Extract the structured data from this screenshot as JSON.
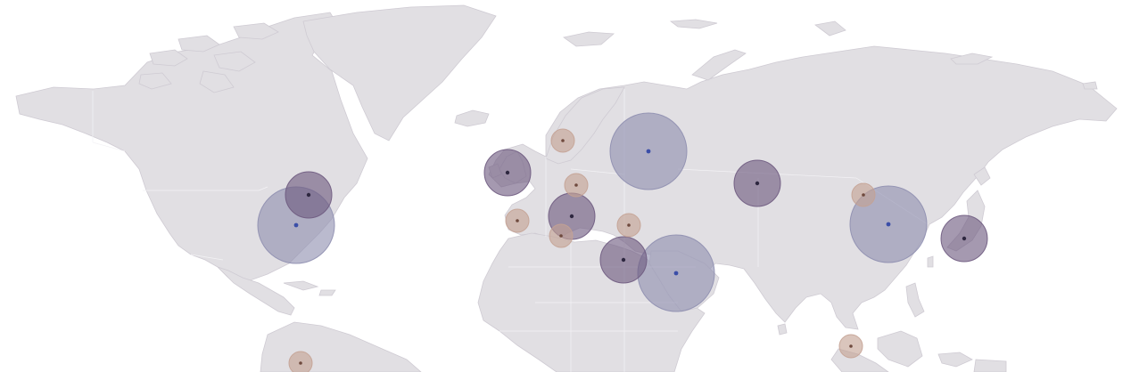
{
  "map": {
    "colors": {
      "ocean": "#ffffff",
      "land": "#e1dfe3",
      "coastline": "#cfcbd3",
      "border": "#f3f2f5",
      "bubble_large": "#8f8fb0",
      "bubble_medium": "#6e5a80",
      "bubble_small": "#c4a293",
      "center_dot_large": "#3b4ea8",
      "center_dot_medium": "#2e2740",
      "center_dot_small": "#6f4a3e"
    },
    "bubbles": [
      {
        "id": "north-america-east-large",
        "size": "large"
      },
      {
        "id": "north-america-northeast",
        "size": "medium"
      },
      {
        "id": "south-america-north",
        "size": "small"
      },
      {
        "id": "western-europe-uk",
        "size": "medium"
      },
      {
        "id": "scandinavia",
        "size": "small"
      },
      {
        "id": "central-europe",
        "size": "small"
      },
      {
        "id": "iberia",
        "size": "small"
      },
      {
        "id": "north-africa-west",
        "size": "small"
      },
      {
        "id": "southern-europe",
        "size": "medium"
      },
      {
        "id": "turkey",
        "size": "small"
      },
      {
        "id": "eastern-mediterranean",
        "size": "medium"
      },
      {
        "id": "arabian-peninsula",
        "size": "large"
      },
      {
        "id": "russia-west",
        "size": "large"
      },
      {
        "id": "central-asia",
        "size": "medium"
      },
      {
        "id": "mongolia-north-china",
        "size": "small"
      },
      {
        "id": "east-china",
        "size": "large"
      },
      {
        "id": "japan",
        "size": "medium"
      },
      {
        "id": "southeast-asia",
        "size": "small"
      }
    ]
  }
}
